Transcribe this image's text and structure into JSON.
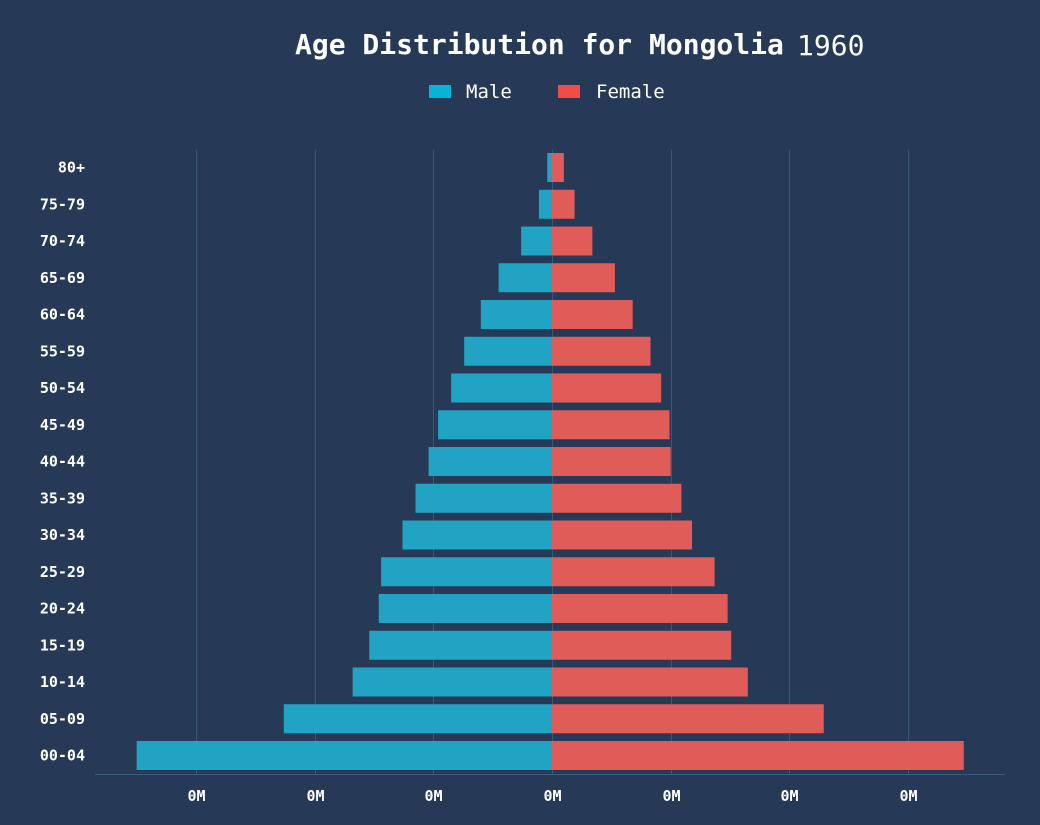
{
  "chart_data": {
    "type": "bar",
    "orientation": "horizontal",
    "layout": "population-pyramid",
    "title": "Age Distribution for Mongolia",
    "year": "1960",
    "categories": [
      "80+",
      "75-79",
      "70-74",
      "65-69",
      "60-64",
      "55-59",
      "50-54",
      "45-49",
      "40-44",
      "35-39",
      "30-34",
      "25-29",
      "20-24",
      "15-19",
      "10-14",
      "05-09",
      "00-04"
    ],
    "series": [
      {
        "name": "Male",
        "color": "#21a3c3",
        "legend_color": "#06b4d9",
        "values": [
          2000,
          5500,
          13000,
          22500,
          30000,
          37000,
          42500,
          48000,
          52000,
          57500,
          63000,
          72000,
          73000,
          77000,
          84000,
          113000,
          175000
        ]
      },
      {
        "name": "Female",
        "color": "#e05c58",
        "legend_color": "#f24c48",
        "values": [
          5000,
          9500,
          17000,
          26500,
          34000,
          41500,
          46000,
          49500,
          50000,
          54500,
          59000,
          68500,
          74000,
          75500,
          82500,
          114500,
          173500
        ]
      }
    ],
    "x_tick_labels": [
      "0M",
      "0M",
      "0M",
      "0M",
      "0M",
      "0M",
      "0M"
    ],
    "x_tick_values": [
      -150000,
      -100000,
      -50000,
      0,
      50000,
      100000,
      150000
    ],
    "xlim": [
      -192000,
      192000
    ],
    "grid": "vertical",
    "legend_position": "top-center"
  },
  "colors": {
    "background": "#263a57",
    "grid": "#3a5878",
    "text": "#ffffff"
  }
}
